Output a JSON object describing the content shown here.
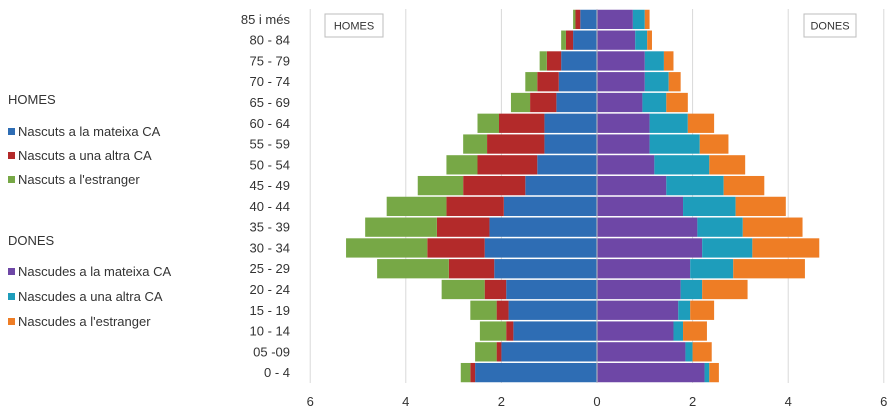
{
  "chart_data": {
    "type": "bar",
    "orientation": "horizontal",
    "stacked": true,
    "categories": [
      "0 - 4",
      "05 -09",
      "10 - 14",
      "15 - 19",
      "20 - 24",
      "25 - 29",
      "30 - 34",
      "35 - 39",
      "40 - 44",
      "45 - 49",
      "50 - 54",
      "55 - 59",
      "60 - 64",
      "65 - 69",
      "70 - 74",
      "75 - 79",
      "80 - 84",
      "85 i més"
    ],
    "groups": [
      {
        "side": "left",
        "heading": "HOMES",
        "box_label": "HOMES",
        "series": [
          {
            "name": "Nascuts a la mateixa CA",
            "color": "#2E6DB4",
            "values": [
              2.55,
              2.0,
              1.75,
              1.85,
              1.9,
              2.15,
              2.35,
              2.25,
              1.95,
              1.5,
              1.25,
              1.1,
              1.1,
              0.85,
              0.8,
              0.75,
              0.5,
              0.35
            ]
          },
          {
            "name": "Nascuts a una altra CA",
            "color": "#B32A2A",
            "values": [
              0.1,
              0.1,
              0.15,
              0.25,
              0.45,
              0.95,
              1.2,
              1.1,
              1.2,
              1.3,
              1.25,
              1.2,
              0.95,
              0.55,
              0.45,
              0.3,
              0.15,
              0.1
            ]
          },
          {
            "name": "Nascuts  a l'estranger",
            "color": "#77A846",
            "values": [
              0.2,
              0.45,
              0.55,
              0.55,
              0.9,
              1.5,
              1.7,
              1.5,
              1.25,
              0.95,
              0.65,
              0.5,
              0.45,
              0.4,
              0.25,
              0.15,
              0.1,
              0.05
            ]
          }
        ]
      },
      {
        "side": "right",
        "heading": "DONES",
        "box_label": "DONES",
        "series": [
          {
            "name": "Nascudes a la mateixa CA",
            "color": "#6E47A6",
            "values": [
              2.25,
              1.85,
              1.6,
              1.7,
              1.75,
              1.95,
              2.2,
              2.1,
              1.8,
              1.45,
              1.2,
              1.1,
              1.1,
              0.95,
              1.0,
              1.0,
              0.8,
              0.75
            ]
          },
          {
            "name": "Nascudes a una altra CA",
            "color": "#1E9DBB",
            "values": [
              0.1,
              0.15,
              0.2,
              0.25,
              0.45,
              0.9,
              1.05,
              0.95,
              1.1,
              1.2,
              1.15,
              1.05,
              0.8,
              0.5,
              0.5,
              0.4,
              0.25,
              0.25
            ]
          },
          {
            "name": "Nascudes a l'estranger",
            "color": "#EE7D25",
            "values": [
              0.2,
              0.4,
              0.5,
              0.5,
              0.95,
              1.5,
              1.4,
              1.25,
              1.05,
              0.85,
              0.75,
              0.6,
              0.55,
              0.45,
              0.25,
              0.2,
              0.1,
              0.1
            ]
          }
        ]
      }
    ],
    "xlim": [
      -6,
      6
    ],
    "xticks": [
      -6,
      -4,
      -2,
      0,
      2,
      4,
      6
    ],
    "xtick_labels": [
      "6",
      "4",
      "2",
      "0",
      "2",
      "4",
      "6"
    ],
    "grid": "vertical",
    "legend_position": "left"
  }
}
